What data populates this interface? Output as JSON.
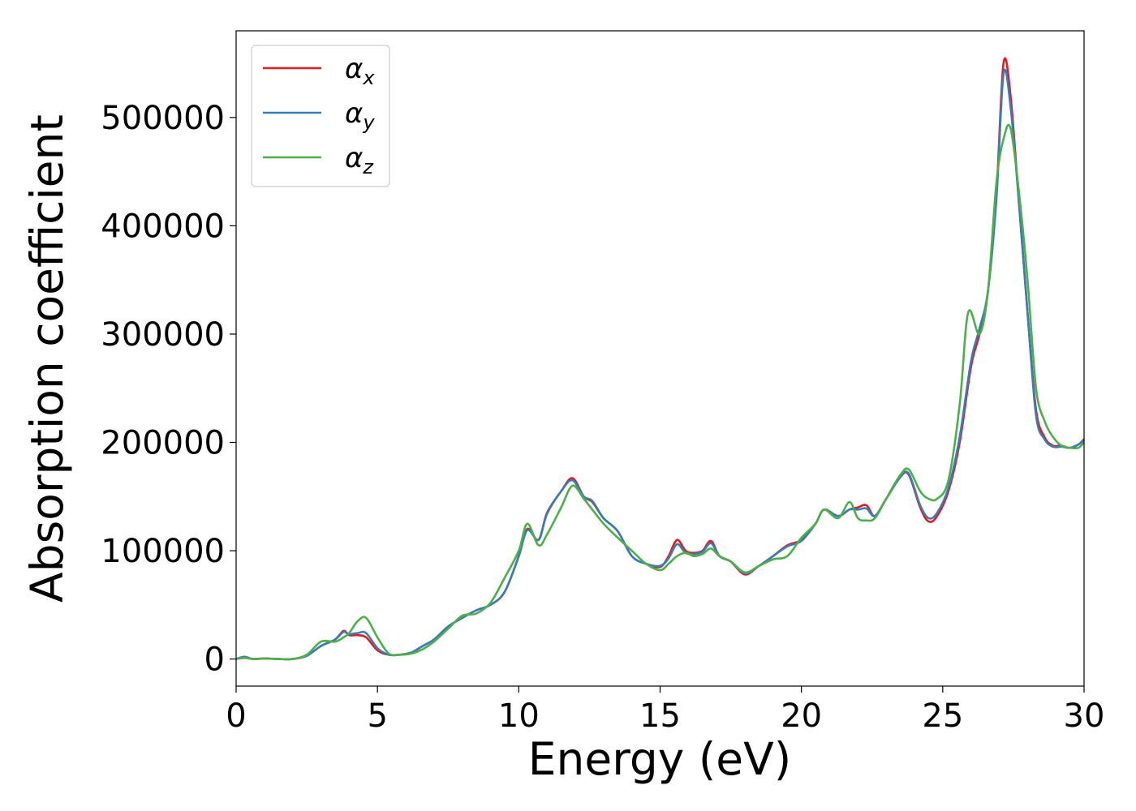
{
  "chart_data": {
    "type": "line",
    "xlabel": "Energy (eV)",
    "ylabel": "Absorption coefficient",
    "xlim": [
      0,
      30
    ],
    "ylim": [
      -25000,
      580000
    ],
    "xticks": [
      0,
      5,
      10,
      15,
      20,
      25,
      30
    ],
    "yticks": [
      0,
      100000,
      200000,
      300000,
      400000,
      500000
    ],
    "grid": false,
    "legend_position": "upper-left",
    "series": [
      {
        "name": "αx",
        "symbol": "α",
        "subscript": "x",
        "color": "#e41a1c",
        "x": [
          0,
          0.3,
          0.6,
          1,
          1.5,
          2,
          2.5,
          3,
          3.5,
          3.8,
          4.0,
          4.3,
          4.6,
          5,
          5.4,
          5.8,
          6.2,
          6.6,
          7,
          7.5,
          8,
          8.5,
          9,
          9.5,
          10,
          10.3,
          10.7,
          11,
          11.5,
          11.9,
          12.3,
          12.6,
          13,
          13.5,
          14,
          14.5,
          15,
          15.3,
          15.6,
          15.9,
          16.2,
          16.5,
          16.8,
          17.1,
          17.5,
          18,
          18.5,
          19,
          19.5,
          20,
          20.5,
          20.8,
          21.3,
          21.7,
          22,
          22.3,
          22.6,
          23,
          23.5,
          23.8,
          24.2,
          24.5,
          24.8,
          25.2,
          25.6,
          26,
          26.3,
          26.6,
          26.9,
          27.15,
          27.4,
          27.7,
          28,
          28.3,
          28.6,
          28.9,
          29.2,
          29.5,
          29.8,
          30
        ],
        "values": [
          0,
          2000,
          0,
          500,
          0,
          0,
          3000,
          12000,
          18000,
          26000,
          22000,
          22000,
          20000,
          8000,
          4000,
          4000,
          6000,
          12000,
          18000,
          30000,
          38000,
          45000,
          50000,
          62000,
          95000,
          120000,
          110000,
          135000,
          155000,
          167000,
          150000,
          145000,
          130000,
          118000,
          95000,
          88000,
          85000,
          95000,
          110000,
          100000,
          98000,
          100000,
          109000,
          95000,
          90000,
          78000,
          86000,
          95000,
          105000,
          110000,
          125000,
          138000,
          132000,
          138000,
          140000,
          142000,
          132000,
          148000,
          168000,
          170000,
          140000,
          127000,
          132000,
          155000,
          200000,
          270000,
          300000,
          340000,
          430000,
          550000,
          520000,
          420000,
          320000,
          230000,
          205000,
          197000,
          197000,
          195000,
          198000,
          203000
        ]
      },
      {
        "name": "αy",
        "symbol": "α",
        "subscript": "y",
        "color": "#377eb8",
        "x": [
          0,
          0.3,
          0.6,
          1,
          1.5,
          2,
          2.5,
          3,
          3.5,
          3.8,
          4.0,
          4.3,
          4.6,
          5,
          5.4,
          5.8,
          6.2,
          6.6,
          7,
          7.5,
          8,
          8.5,
          9,
          9.5,
          10,
          10.3,
          10.7,
          11,
          11.5,
          11.9,
          12.3,
          12.6,
          13,
          13.5,
          14,
          14.5,
          15,
          15.3,
          15.6,
          15.9,
          16.2,
          16.5,
          16.8,
          17.1,
          17.5,
          18,
          18.5,
          19,
          19.5,
          20,
          20.5,
          20.8,
          21.3,
          21.7,
          22,
          22.3,
          22.6,
          23,
          23.5,
          23.8,
          24.2,
          24.5,
          24.8,
          25.2,
          25.6,
          26,
          26.3,
          26.6,
          26.9,
          27.15,
          27.4,
          27.7,
          28,
          28.3,
          28.6,
          28.9,
          29.2,
          29.5,
          29.8,
          30
        ],
        "values": [
          0,
          2000,
          0,
          500,
          0,
          0,
          3000,
          12000,
          18000,
          25000,
          23000,
          24000,
          24000,
          10000,
          4000,
          4000,
          6000,
          12000,
          18000,
          30000,
          38000,
          45000,
          50000,
          62000,
          95000,
          119000,
          110000,
          134000,
          155000,
          165000,
          150000,
          146000,
          130000,
          118000,
          95000,
          88000,
          86000,
          93000,
          106000,
          98000,
          97000,
          99000,
          107000,
          95000,
          90000,
          79000,
          86000,
          95000,
          104000,
          109000,
          125000,
          138000,
          132000,
          138000,
          138000,
          139000,
          132000,
          148000,
          168000,
          171000,
          142000,
          130000,
          135000,
          158000,
          205000,
          275000,
          305000,
          340000,
          425000,
          540000,
          510000,
          420000,
          320000,
          225000,
          203000,
          196000,
          196000,
          195000,
          198000,
          202000
        ]
      },
      {
        "name": "αz",
        "symbol": "α",
        "subscript": "z",
        "color": "#4daf4a",
        "x": [
          0,
          0.3,
          0.6,
          1,
          1.5,
          2,
          2.5,
          3,
          3.5,
          3.8,
          4.0,
          4.3,
          4.6,
          5,
          5.4,
          5.8,
          6.2,
          6.6,
          7,
          7.5,
          8,
          8.5,
          9,
          9.5,
          10,
          10.3,
          10.7,
          11,
          11.5,
          11.9,
          12.3,
          12.6,
          13,
          13.5,
          14,
          14.5,
          15,
          15.3,
          15.6,
          15.9,
          16.2,
          16.5,
          16.8,
          17.1,
          17.5,
          18,
          18.5,
          19,
          19.5,
          20,
          20.5,
          20.8,
          21.3,
          21.7,
          22,
          22.3,
          22.6,
          23,
          23.5,
          23.8,
          24.2,
          24.5,
          24.8,
          25.2,
          25.6,
          25.9,
          26.3,
          26.6,
          26.9,
          27.15,
          27.4,
          27.7,
          28,
          28.3,
          28.6,
          28.9,
          29.2,
          29.5,
          29.8,
          30
        ],
        "values": [
          0,
          1000,
          0,
          500,
          0,
          0,
          4000,
          16000,
          16000,
          20000,
          24000,
          35000,
          38000,
          20000,
          5000,
          4000,
          5000,
          9000,
          16000,
          28000,
          40000,
          42000,
          52000,
          75000,
          100000,
          125000,
          105000,
          115000,
          140000,
          160000,
          148000,
          138000,
          125000,
          112000,
          100000,
          88000,
          82000,
          88000,
          95000,
          98000,
          95000,
          97000,
          102000,
          95000,
          90000,
          80000,
          86000,
          92000,
          95000,
          112000,
          125000,
          138000,
          130000,
          145000,
          130000,
          128000,
          130000,
          148000,
          170000,
          175000,
          155000,
          148000,
          148000,
          165000,
          235000,
          320000,
          300000,
          340000,
          440000,
          480000,
          490000,
          430000,
          350000,
          250000,
          220000,
          205000,
          197000,
          195000,
          195000,
          200000
        ]
      }
    ]
  }
}
